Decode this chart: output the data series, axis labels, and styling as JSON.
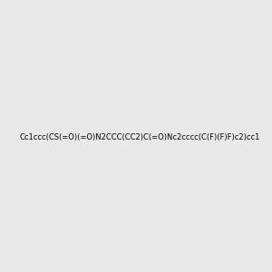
{
  "smiles": "Cc1ccc(CS(=O)(=O)N2CCC(CC2)C(=O)Nc2cccc(C(F)(F)F)c2)cc1",
  "image_size": 300,
  "background_color": "#e8e8e8",
  "title": ""
}
